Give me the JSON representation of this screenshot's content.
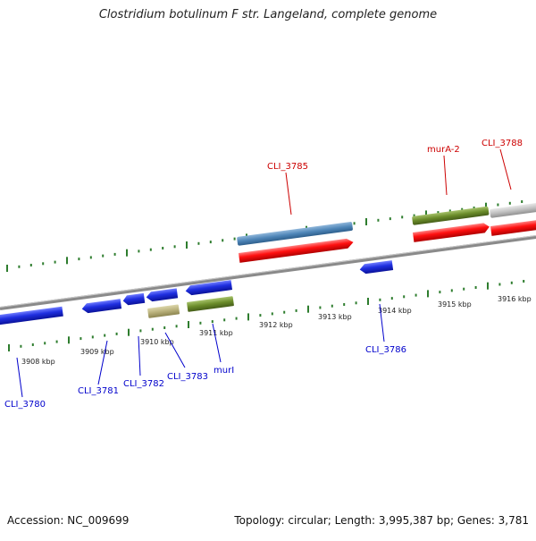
{
  "title": "Clostridium botulinum F str. Langeland, complete genome",
  "footer": {
    "accession": "Accession: NC_009699",
    "summary": "Topology: circular; Length: 3,995,387 bp; Genes: 3,781"
  },
  "colors": {
    "backbone": "#808080",
    "tick": "#2e7d2e",
    "top_label": "#cc0000",
    "bottom_label": "#0000cc",
    "cds_blue": "#1f2fe0",
    "cds_red": "#ff1010",
    "cds_steel": "#4f86b8",
    "cds_olive": "#6b8c2a",
    "cds_khaki": "#b8b07a",
    "cds_gray": "#c0c0c0"
  },
  "scale_labels": [
    "3908 kbp",
    "3909 kbp",
    "3910 kbp",
    "3911 kbp",
    "3912 kbp",
    "3913 kbp",
    "3914 kbp",
    "3915 kbp",
    "3916 kbp"
  ],
  "top_labels": [
    "CLI_3785",
    "murA-2",
    "CLI_3788"
  ],
  "bottom_labels": [
    "CLI_3780",
    "CLI_3781",
    "CLI_3782",
    "CLI_3783",
    "murI",
    "CLI_3786"
  ]
}
